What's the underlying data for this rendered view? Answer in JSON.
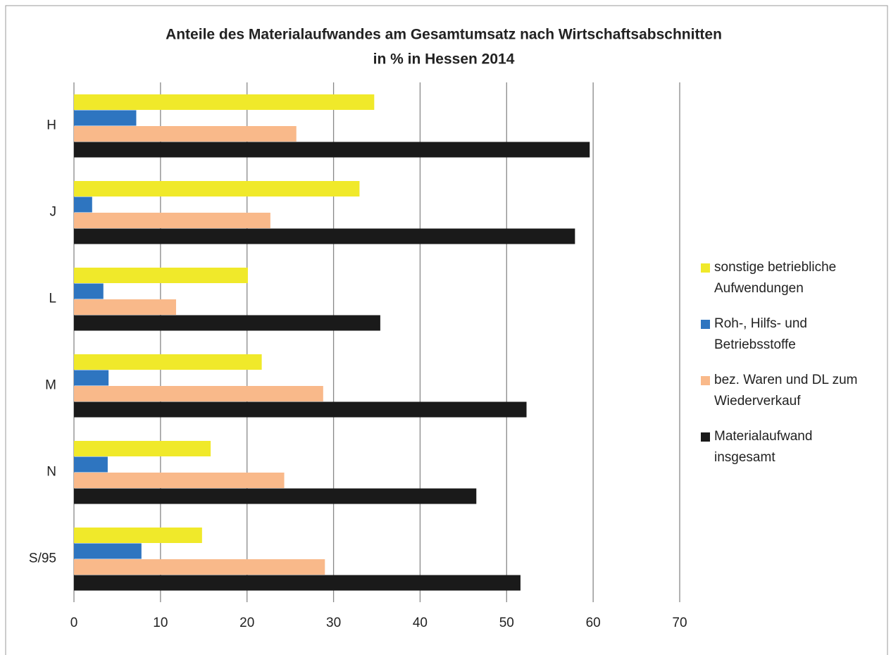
{
  "chart_data": {
    "type": "bar",
    "orientation": "horizontal",
    "title": [
      "Anteile des Materialaufwandes  am Gesamtumsatz nach Wirtschaftsabschnitten",
      "in % in Hessen 2014"
    ],
    "categories": [
      "H",
      "J",
      "L",
      "M",
      "N",
      "S/95"
    ],
    "series": [
      {
        "name": "sonstige betriebliche Aufwendungen",
        "color": "#f0e92a",
        "values": [
          34.7,
          33.0,
          20.1,
          21.7,
          15.8,
          14.8
        ]
      },
      {
        "name": "Roh-, Hilfs- und Betriebsstoffe",
        "color": "#2e75c0",
        "values": [
          7.2,
          2.1,
          3.4,
          4.0,
          3.9,
          7.8
        ]
      },
      {
        "name": "bez. Waren und DL zum Wiederverkauf",
        "color": "#f9b98a",
        "values": [
          25.7,
          22.7,
          11.8,
          28.8,
          24.3,
          29.0
        ]
      },
      {
        "name": "Materialaufwand insgesamt",
        "color": "#1a1a1a",
        "values": [
          59.6,
          57.9,
          35.4,
          52.3,
          46.5,
          51.6
        ]
      }
    ],
    "xlim": [
      0,
      70
    ],
    "xticks": [
      0,
      10,
      20,
      30,
      40,
      50,
      60,
      70
    ],
    "grid": true,
    "legend": "right"
  }
}
